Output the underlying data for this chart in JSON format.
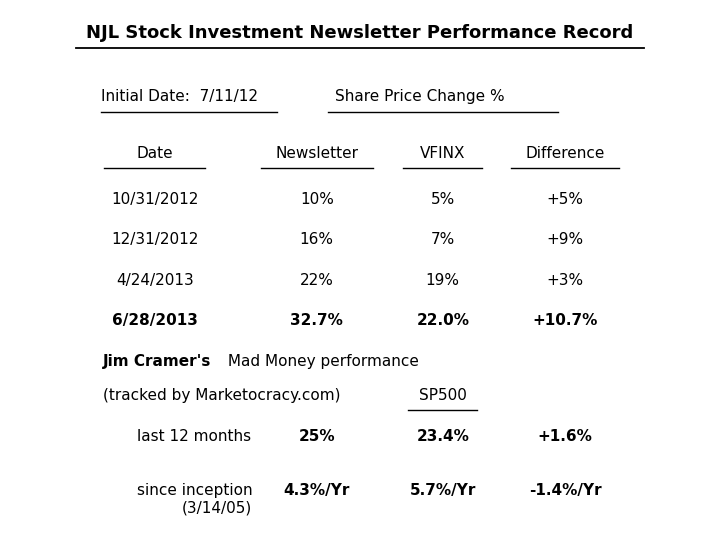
{
  "title": "NJL Stock Investment Newsletter Performance Record",
  "initial_date_label": "Initial Date:  7/11/12",
  "share_price_label": "Share Price Change %",
  "col_headers": [
    "Date",
    "Newsletter",
    "VFINX",
    "Difference"
  ],
  "rows": [
    [
      "10/31/2012",
      "10%",
      "5%",
      "+5%"
    ],
    [
      "12/31/2012",
      "16%",
      "7%",
      "+9%"
    ],
    [
      "4/24/2013",
      "22%",
      "19%",
      "+3%"
    ],
    [
      "6/28/2013",
      "32.7%",
      "22.0%",
      "+10.7%"
    ]
  ],
  "cramer_bold": "Jim Cramer's",
  "cramer_rest": " Mad Money performance",
  "cramer_line2": "(tracked by Marketocracy.com)",
  "sp500_label": "SP500",
  "comp_rows": [
    {
      "label": "last 12 months",
      "v1": "25%",
      "v2": "23.4%",
      "v3": "+1.6%"
    },
    {
      "label": "since inception\n(3/14/05)",
      "v1": "4.3%/Yr",
      "v2": "5.7%/Yr",
      "v3": "-1.4%/Yr"
    }
  ],
  "bg_color": "#ffffff",
  "text_color": "#000000",
  "fs": 11,
  "title_fs": 13
}
